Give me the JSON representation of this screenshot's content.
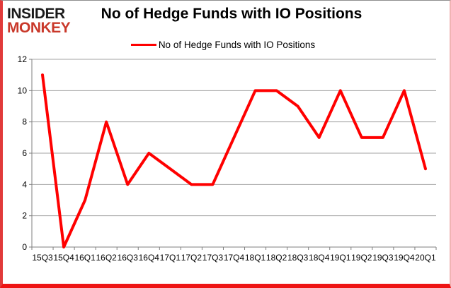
{
  "logo": {
    "line1": "INSIDER",
    "line2": "MONKEY"
  },
  "header": {
    "title": "No of Hedge Funds with IO Positions"
  },
  "legend": {
    "label": "No of Hedge Funds with IO Positions"
  },
  "colors": {
    "series_line": "#ff0000",
    "logo_black": "#1a1a1a",
    "logo_red": "#c9382a",
    "gridline": "#a3a3a3",
    "axis": "#7f7f7f",
    "text": "#000000",
    "background": "#ffffff",
    "frame_top": "#8f8f8f",
    "frame_right": "#f0b4b4",
    "frame_bottom": "#ee1414",
    "frame_left": "#e13a3a"
  },
  "chart_data": {
    "type": "line",
    "title": "No of Hedge Funds with IO Positions",
    "categories": [
      "15Q3",
      "15Q4",
      "16Q1",
      "16Q2",
      "16Q3",
      "16Q4",
      "17Q1",
      "17Q2",
      "17Q3",
      "17Q4",
      "18Q1",
      "18Q2",
      "18Q3",
      "18Q4",
      "19Q1",
      "19Q2",
      "19Q3",
      "19Q4",
      "20Q1"
    ],
    "series": [
      {
        "name": "No of Hedge Funds with IO Positions",
        "color": "#ff0000",
        "values": [
          11,
          0,
          3,
          8,
          4,
          6,
          5,
          4,
          4,
          7,
          10,
          10,
          9,
          7,
          10,
          7,
          7,
          10,
          5
        ]
      }
    ],
    "ylim": [
      0,
      12
    ],
    "yticks": [
      0,
      2,
      4,
      6,
      8,
      10,
      12
    ],
    "xlabel": "",
    "ylabel": "",
    "grid": true,
    "legend_position": "top-center"
  }
}
